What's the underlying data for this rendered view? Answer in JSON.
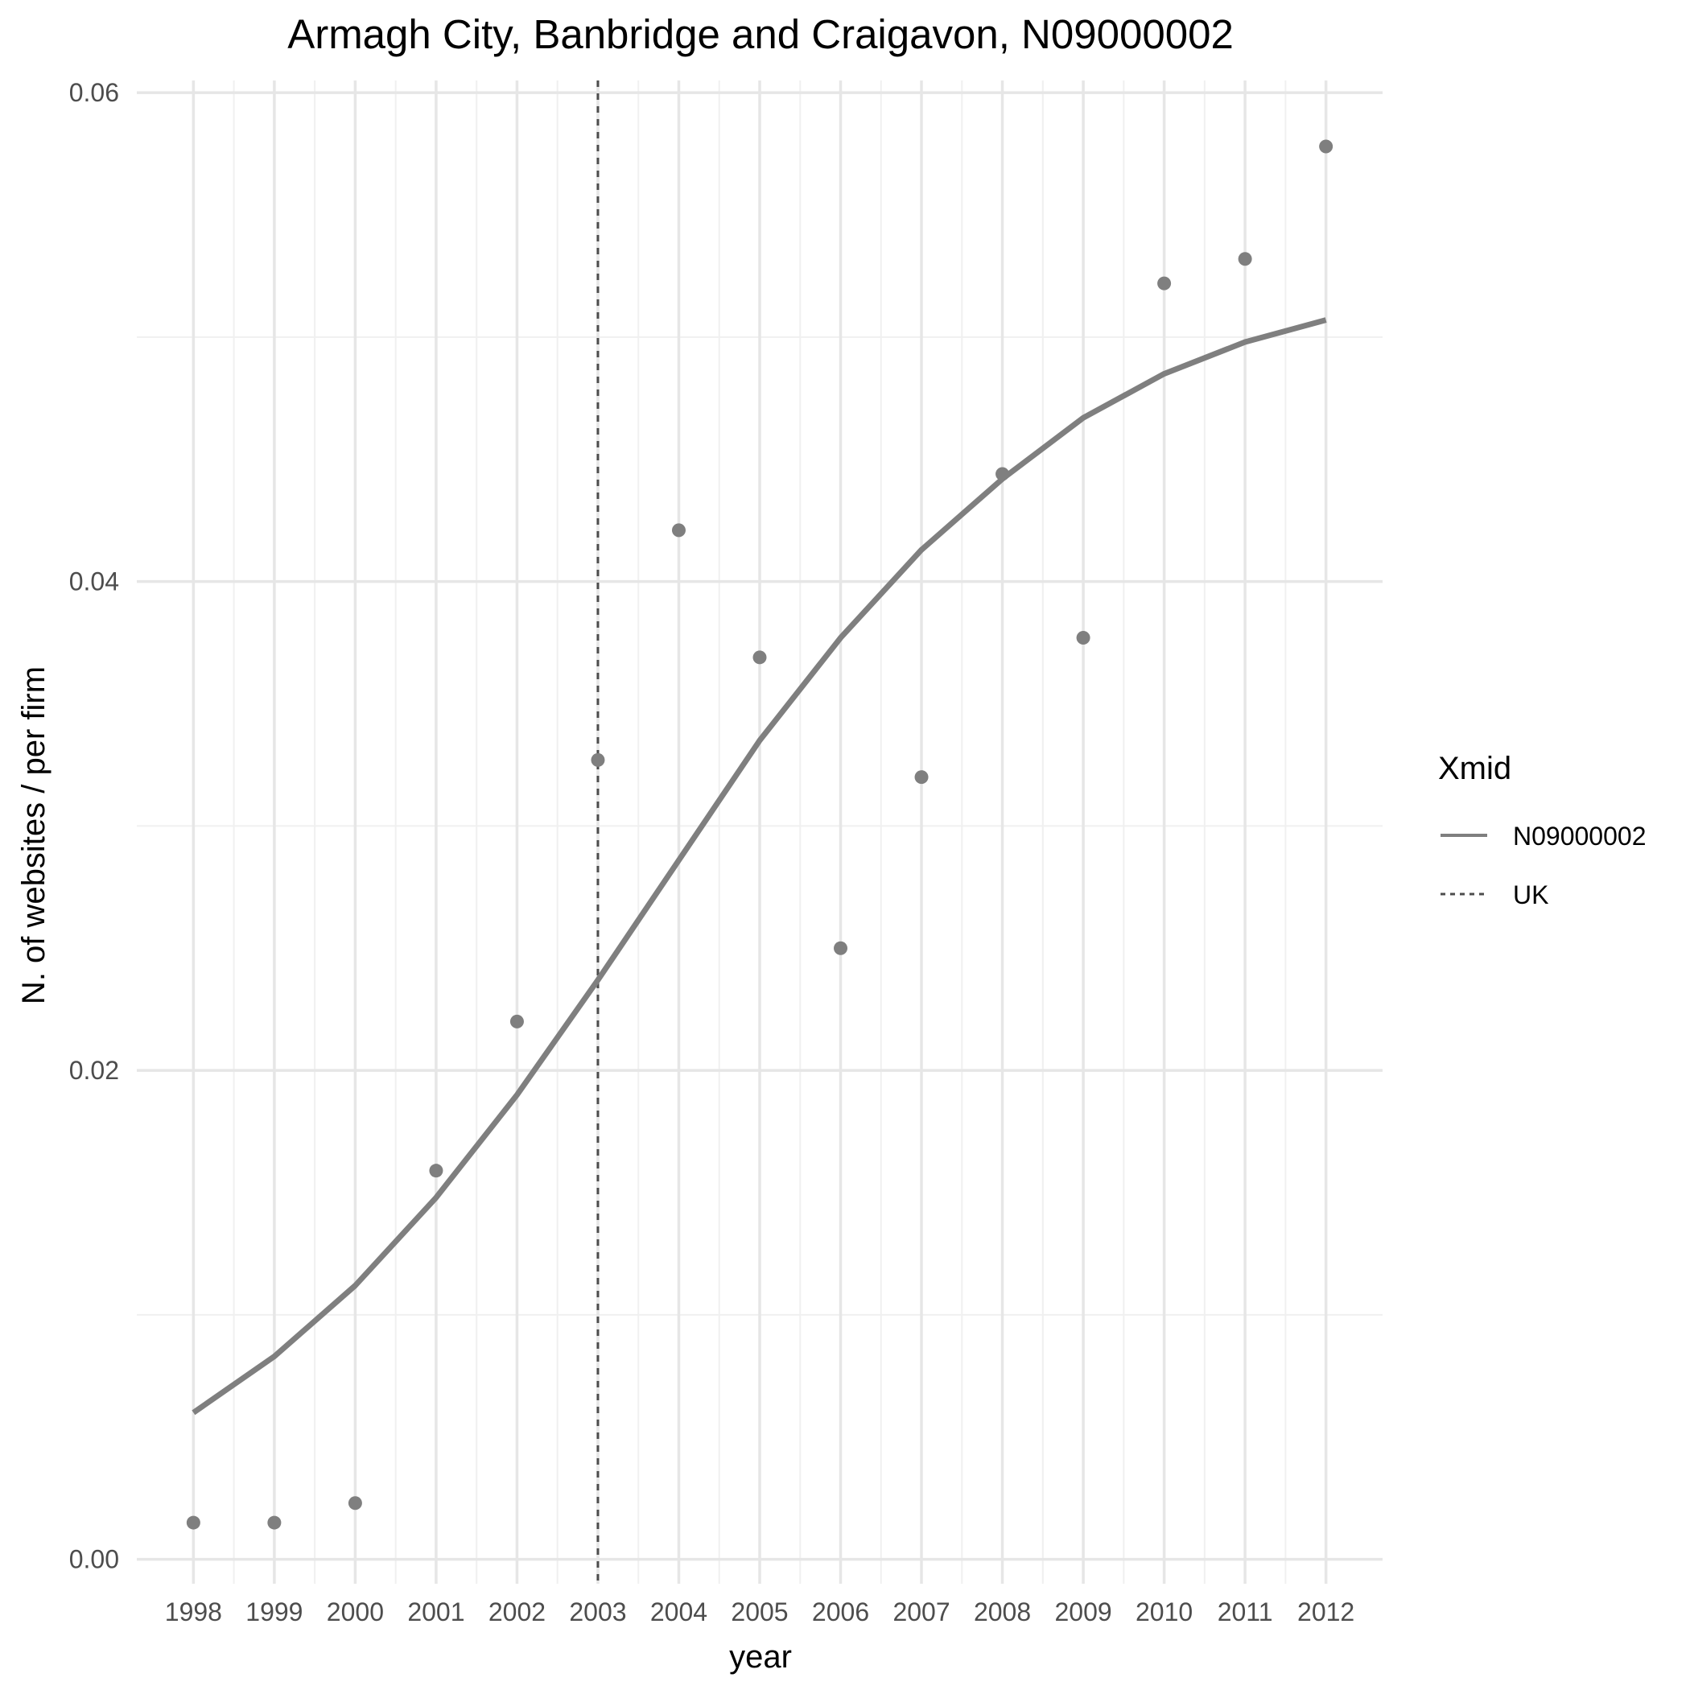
{
  "chart_data": {
    "type": "line",
    "title": "Armagh City, Banbridge and Craigavon, N09000002",
    "xlabel": "year",
    "ylabel": "N. of websites / per firm",
    "x_ticks": [
      "1998",
      "1999",
      "2000",
      "2001",
      "2002",
      "2003",
      "2004",
      "2005",
      "2006",
      "2007",
      "2008",
      "2009",
      "2010",
      "2011",
      "2012"
    ],
    "x_range": [
      1997.3,
      2012.7
    ],
    "ylim": [
      -0.001,
      0.0605
    ],
    "y_ticks": [
      0.0,
      0.02,
      0.04,
      0.06
    ],
    "y_tick_labels": [
      "0.00",
      "0.02",
      "0.04",
      "0.06"
    ],
    "grid": true,
    "legend": {
      "title": "Xmid",
      "position": "right",
      "entries": [
        {
          "label": "N09000002",
          "linetype": "solid"
        },
        {
          "label": "UK",
          "linetype": "dashed"
        }
      ]
    },
    "series": [
      {
        "name": "N09000002",
        "kind": "line",
        "color": "#7f7f7f",
        "x": [
          1998,
          1999,
          2000,
          2001,
          2002,
          2003,
          2004,
          2005,
          2006,
          2007,
          2008,
          2009,
          2010,
          2011,
          2012
        ],
        "values": [
          0.006,
          0.0083,
          0.0112,
          0.0148,
          0.019,
          0.0237,
          0.0286,
          0.0335,
          0.0377,
          0.0413,
          0.0442,
          0.0467,
          0.0485,
          0.0498,
          0.0507
        ]
      },
      {
        "kind": "points",
        "color": "#7f7f7f",
        "x": [
          1998,
          1999,
          2000,
          2001,
          2002,
          2003,
          2004,
          2005,
          2006,
          2007,
          2008,
          2009,
          2010,
          2011,
          2012
        ],
        "values": [
          0.0015,
          0.0015,
          0.0023,
          0.0159,
          0.022,
          0.0327,
          0.0421,
          0.0369,
          0.025,
          0.032,
          0.0444,
          0.0377,
          0.0522,
          0.0532,
          0.0578
        ]
      }
    ],
    "vlines": [
      {
        "name": "UK",
        "x": 2003,
        "linetype": "dashed",
        "color": "#4d4d4d"
      }
    ]
  }
}
